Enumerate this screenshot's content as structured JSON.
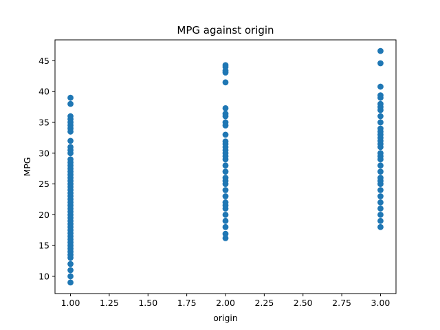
{
  "chart_data": {
    "type": "scatter",
    "title": "MPG against origin",
    "xlabel": "origin",
    "ylabel": "MPG",
    "xlim": [
      0.9,
      3.1
    ],
    "ylim": [
      7.2,
      48.4
    ],
    "xticks": [
      "1.00",
      "1.25",
      "1.50",
      "1.75",
      "2.00",
      "2.25",
      "2.50",
      "2.75",
      "3.00"
    ],
    "yticks": [
      "10",
      "15",
      "20",
      "25",
      "30",
      "35",
      "40",
      "45"
    ],
    "grid": false,
    "marker_color": "#1f77b4",
    "series": [
      {
        "x": 1,
        "y": [
          9,
          10,
          11,
          12,
          13,
          13.5,
          14,
          14.5,
          15,
          15.5,
          16,
          16.5,
          17,
          17.5,
          18,
          18.5,
          19,
          19.5,
          20,
          20.5,
          21,
          21.5,
          22,
          22.5,
          23,
          23.5,
          24,
          24.5,
          25,
          25.5,
          26,
          26.5,
          27,
          27.5,
          28,
          28.5,
          29,
          30,
          30.5,
          31,
          32,
          33.5,
          34,
          34.5,
          35,
          35.5,
          36,
          38,
          39
        ]
      },
      {
        "x": 2,
        "y": [
          16.2,
          16.9,
          18,
          19,
          20,
          21,
          21.5,
          22,
          23,
          24,
          25,
          25.5,
          26,
          27,
          28,
          29,
          29.5,
          30,
          30.5,
          31,
          31.5,
          31.9,
          33,
          34.5,
          35,
          36,
          36.4,
          37.3,
          41.5,
          43.1,
          43.4,
          44,
          44.3
        ]
      },
      {
        "x": 3,
        "y": [
          18,
          19,
          20,
          21,
          22,
          23,
          24,
          25,
          25.5,
          26,
          27,
          28,
          29,
          29.5,
          30,
          31,
          31.5,
          32,
          32.5,
          33,
          33.5,
          34,
          35,
          36,
          37,
          37.5,
          38,
          39,
          39.4,
          40.8,
          44.6,
          46.6
        ]
      }
    ]
  }
}
